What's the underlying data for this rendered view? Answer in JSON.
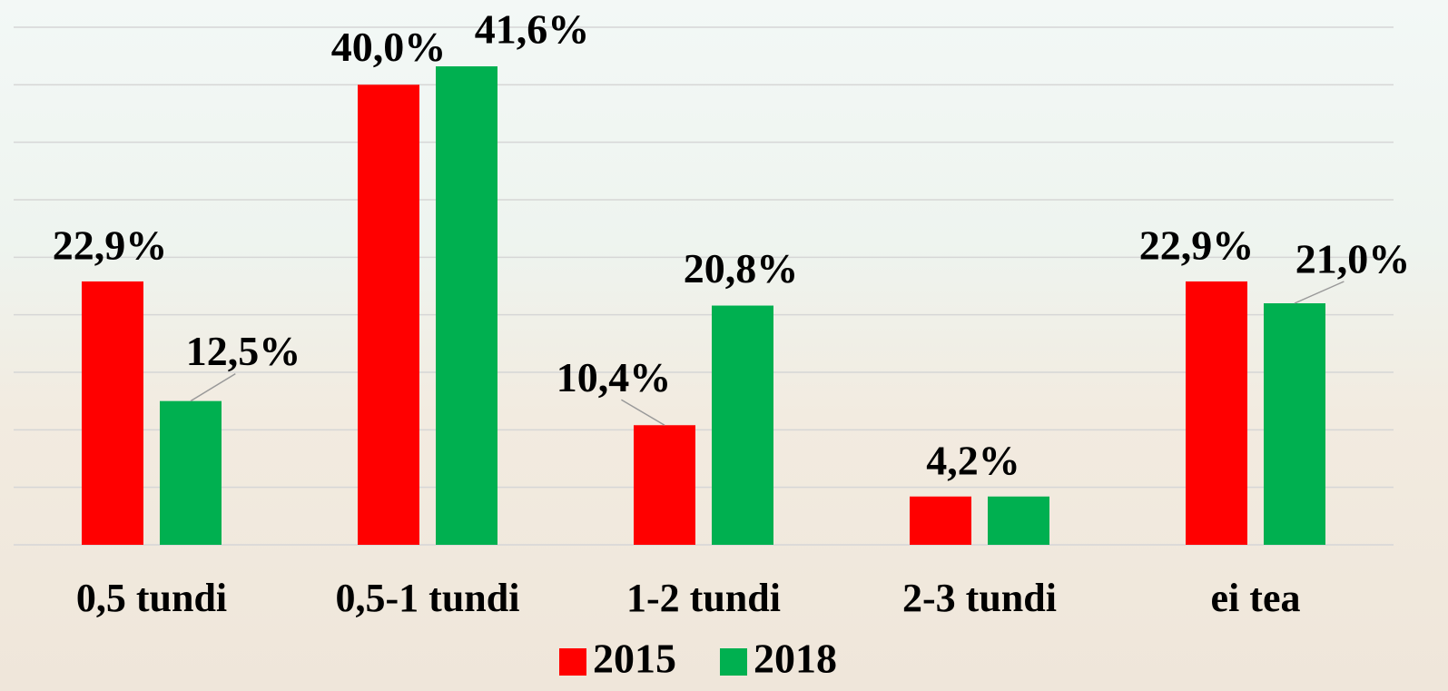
{
  "chart_data": {
    "type": "bar",
    "categories": [
      "0,5 tundi",
      "0,5-1 tundi",
      "1-2 tundi",
      "2-3 tundi",
      "ei tea"
    ],
    "series": [
      {
        "name": "2015",
        "color": "#ff0000",
        "values": [
          22.9,
          40.0,
          10.4,
          4.2,
          22.9
        ],
        "value_labels": [
          "22,9%",
          "40,0%",
          "10,4%",
          null,
          "22,9%"
        ]
      },
      {
        "name": "2018",
        "color": "#00b050",
        "values": [
          12.5,
          41.6,
          20.8,
          4.2,
          21.0
        ],
        "value_labels": [
          "12,5%",
          "41,6%",
          "20,8%",
          "4,2%",
          "21,0%"
        ]
      }
    ],
    "ylim": [
      0,
      45
    ],
    "yticks": [
      0,
      5,
      10,
      15,
      20,
      25,
      30,
      35,
      40,
      45
    ],
    "grid": true,
    "legend": "bottom"
  }
}
